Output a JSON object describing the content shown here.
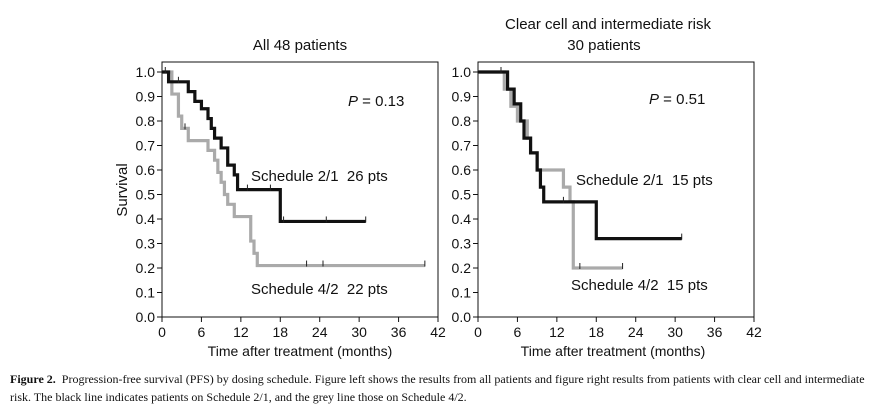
{
  "caption": {
    "label": "Figure 2.",
    "text": "Progression-free survival (PFS) by dosing schedule. Figure left shows the results from all patients and figure right results from patients with clear cell and intermediate risk. The black line indicates patients on Schedule 2/1, and the grey line those on Schedule 4/2."
  },
  "colors": {
    "schedule_2_1": "#111111",
    "schedule_4_2": "#aaaaaa"
  },
  "chart_data": [
    {
      "type": "line",
      "subtype": "kaplan-meier-step",
      "title_lines": [
        "All 48 patients"
      ],
      "xlabel": "Time after treatment (months)",
      "ylabel": "Survival",
      "xlim": [
        0,
        42
      ],
      "ylim": [
        0,
        1.0
      ],
      "x_ticks": [
        "0",
        "6",
        "12",
        "18",
        "24",
        "30",
        "36",
        "42"
      ],
      "y_ticks": [
        "0.0",
        "0.1",
        "0.2",
        "0.3",
        "0.4",
        "0.5",
        "0.6",
        "0.7",
        "0.8",
        "0.9",
        "1.0"
      ],
      "pvalue": {
        "label": "P",
        "text": " = 0.13"
      },
      "grid": false,
      "series": [
        {
          "name": "Schedule 2/1",
          "label": "Schedule 2/1  26 pts",
          "color": "#111111",
          "steps": [
            [
              0,
              1.0
            ],
            [
              1,
              0.96
            ],
            [
              4,
              0.92
            ],
            [
              5,
              0.88
            ],
            [
              6,
              0.85
            ],
            [
              7,
              0.81
            ],
            [
              7.5,
              0.77
            ],
            [
              8,
              0.73
            ],
            [
              9,
              0.69
            ],
            [
              10,
              0.62
            ],
            [
              11,
              0.58
            ],
            [
              11.5,
              0.52
            ],
            [
              18,
              0.39
            ],
            [
              31,
              0.39
            ]
          ],
          "censors": [
            [
              0.5,
              1.0
            ],
            [
              2.5,
              0.96
            ],
            [
              13,
              0.52
            ],
            [
              16.5,
              0.52
            ],
            [
              18.5,
              0.39
            ],
            [
              25,
              0.39
            ],
            [
              31,
              0.39
            ]
          ]
        },
        {
          "name": "Schedule 4/2",
          "label": "Schedule 4/2  22 pts",
          "color": "#aaaaaa",
          "steps": [
            [
              0,
              1.0
            ],
            [
              1.5,
              0.91
            ],
            [
              2.5,
              0.82
            ],
            [
              3,
              0.77
            ],
            [
              4,
              0.72
            ],
            [
              7,
              0.68
            ],
            [
              8,
              0.64
            ],
            [
              8.5,
              0.59
            ],
            [
              9,
              0.55
            ],
            [
              9.5,
              0.5
            ],
            [
              10,
              0.46
            ],
            [
              11,
              0.41
            ],
            [
              13.5,
              0.31
            ],
            [
              14,
              0.26
            ],
            [
              14.5,
              0.21
            ],
            [
              40,
              0.21
            ]
          ],
          "censors": [
            [
              3.5,
              0.77
            ],
            [
              22,
              0.21
            ],
            [
              24.5,
              0.21
            ],
            [
              40,
              0.21
            ]
          ]
        }
      ]
    },
    {
      "type": "line",
      "subtype": "kaplan-meier-step",
      "title_lines": [
        "Clear cell and intermediate risk",
        "30 patients"
      ],
      "xlabel": "Time after treatment (months)",
      "ylabel": "",
      "xlim": [
        0,
        42
      ],
      "ylim": [
        0,
        1.0
      ],
      "x_ticks": [
        "0",
        "6",
        "12",
        "18",
        "24",
        "30",
        "36",
        "42"
      ],
      "y_ticks": [
        "0.0",
        "0.1",
        "0.2",
        "0.3",
        "0.4",
        "0.5",
        "0.6",
        "0.7",
        "0.8",
        "0.9",
        "1.0"
      ],
      "pvalue": {
        "label": "P",
        "text": " = 0.51"
      },
      "grid": false,
      "series": [
        {
          "name": "Schedule 2/1",
          "label": "Schedule 2/1  15 pts",
          "color": "#111111",
          "steps": [
            [
              0,
              1.0
            ],
            [
              4.5,
              0.93
            ],
            [
              5.5,
              0.87
            ],
            [
              6.5,
              0.8
            ],
            [
              7,
              0.73
            ],
            [
              8,
              0.67
            ],
            [
              9,
              0.6
            ],
            [
              9.5,
              0.53
            ],
            [
              10,
              0.47
            ],
            [
              18,
              0.32
            ],
            [
              31,
              0.32
            ]
          ],
          "censors": [
            [
              3.5,
              1.0
            ],
            [
              13,
              0.47
            ],
            [
              31,
              0.32
            ]
          ]
        },
        {
          "name": "Schedule 4/2",
          "label": "Schedule 4/2  15 pts",
          "color": "#aaaaaa",
          "steps": [
            [
              0,
              1.0
            ],
            [
              4,
              0.93
            ],
            [
              5,
              0.86
            ],
            [
              6,
              0.8
            ],
            [
              7.5,
              0.73
            ],
            [
              8,
              0.67
            ],
            [
              9,
              0.6
            ],
            [
              13,
              0.53
            ],
            [
              14,
              0.47
            ],
            [
              14.5,
              0.2
            ],
            [
              22,
              0.2
            ]
          ],
          "censors": [
            [
              6.5,
              0.8
            ],
            [
              15.5,
              0.2
            ],
            [
              22,
              0.2
            ]
          ]
        }
      ]
    }
  ]
}
